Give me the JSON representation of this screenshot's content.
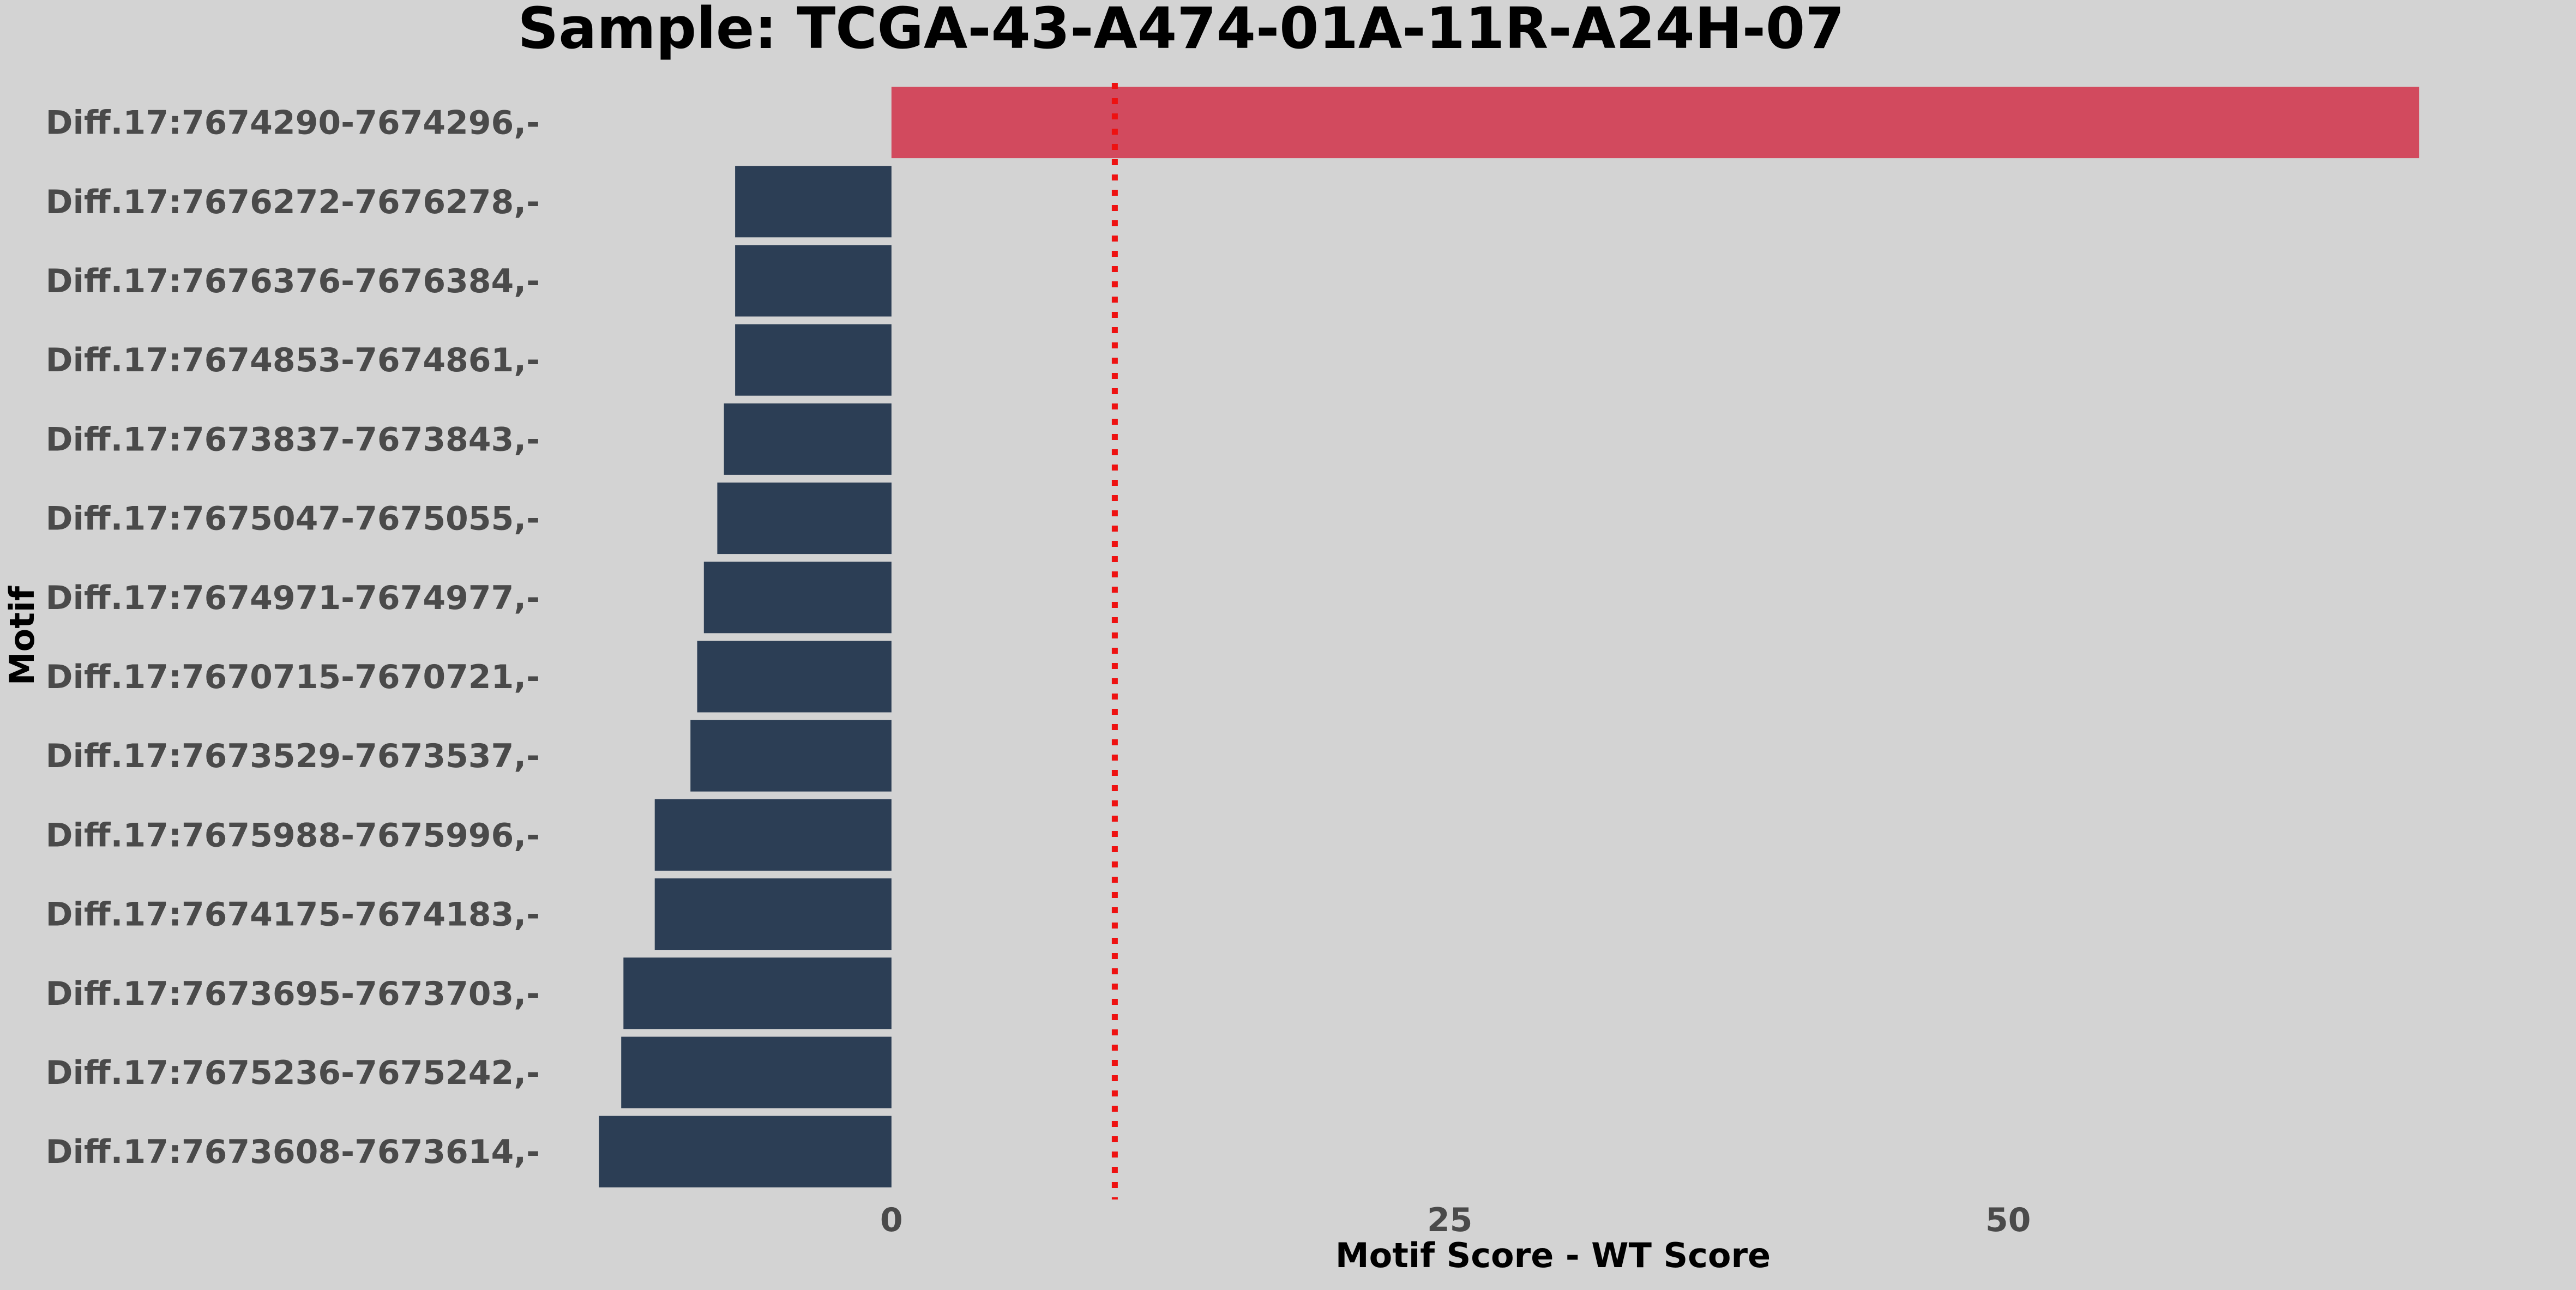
{
  "chart_data": {
    "type": "bar",
    "orientation": "horizontal",
    "title": "Sample: TCGA-43-A474-01A-11R-A24H-07",
    "xlabel": "Motif Score - WT Score",
    "ylabel": "Motif",
    "categories": [
      "Diff.17:7674290-7674296,-",
      "Diff.17:7676272-7676278,-",
      "Diff.17:7676376-7676384,-",
      "Diff.17:7674853-7674861,-",
      "Diff.17:7673837-7673843,-",
      "Diff.17:7675047-7675055,-",
      "Diff.17:7674971-7674977,-",
      "Diff.17:7670715-7670721,-",
      "Diff.17:7673529-7673537,-",
      "Diff.17:7675988-7675996,-",
      "Diff.17:7674175-7674183,-",
      "Diff.17:7673695-7673703,-",
      "Diff.17:7675236-7675242,-",
      "Diff.17:7673608-7673614,-"
    ],
    "values": [
      68.4,
      -7.0,
      -7.0,
      -7.0,
      -7.5,
      -7.8,
      -8.4,
      -8.7,
      -9.0,
      -10.6,
      -10.6,
      -12.0,
      -12.1,
      -13.1
    ],
    "x_ticks": [
      0,
      25,
      50
    ],
    "xlim": [
      -15.5,
      72.4
    ],
    "reference_line": {
      "x": 10,
      "style": "dotted",
      "color": "#ee1111"
    },
    "grid": false,
    "legend": "none",
    "colors": {
      "positive": "#d24a5e",
      "negative": "#2c3e55",
      "background": "#d3d3d3",
      "tick_label": "#4a4a4a",
      "title": "#000000"
    }
  }
}
